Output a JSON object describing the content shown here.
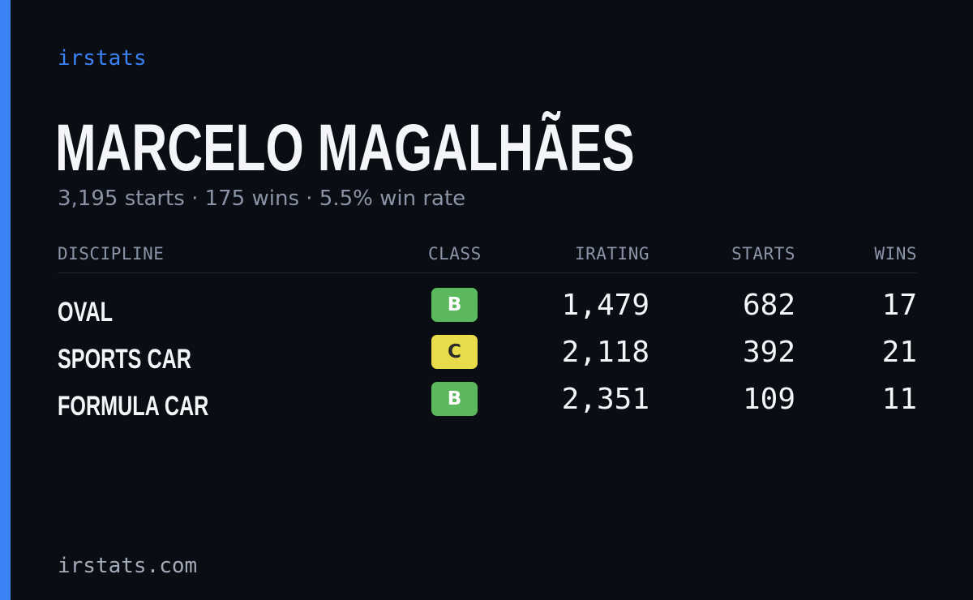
{
  "brand": "irstats",
  "driver": {
    "name": "MARCELO MAGALHÃES",
    "summary": "3,195 starts · 175 wins · 5.5% win rate"
  },
  "colors": {
    "accent": "#3b82f6",
    "background": "#0a0d14",
    "class_b": "#5cb85c",
    "class_c": "#e8dc4a"
  },
  "table": {
    "headers": {
      "discipline": "DISCIPLINE",
      "class": "CLASS",
      "irating": "IRATING",
      "starts": "STARTS",
      "wins": "WINS"
    },
    "rows": [
      {
        "discipline": "OVAL",
        "class": "B",
        "irating": "1,479",
        "starts": "682",
        "wins": "17"
      },
      {
        "discipline": "SPORTS CAR",
        "class": "C",
        "irating": "2,118",
        "starts": "392",
        "wins": "21"
      },
      {
        "discipline": "FORMULA CAR",
        "class": "B",
        "irating": "2,351",
        "starts": "109",
        "wins": "11"
      }
    ]
  },
  "footer": "irstats.com"
}
